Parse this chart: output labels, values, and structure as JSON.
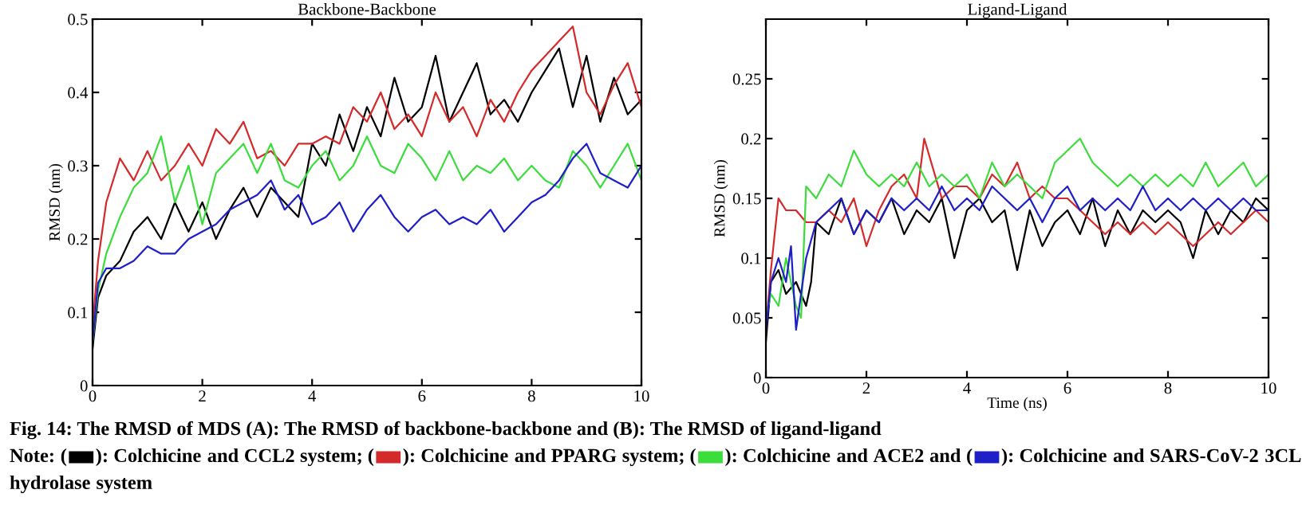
{
  "chart_data": [
    {
      "type": "line",
      "title": "Backbone-Backbone",
      "ylabel": "RMSD (nm)",
      "xlim": [
        0,
        10
      ],
      "ylim": [
        0,
        0.5
      ],
      "xticks": [
        0,
        2,
        4,
        6,
        8,
        10
      ],
      "yticks": [
        0,
        0.1,
        0.2,
        0.3,
        0.4,
        0.5
      ],
      "grid": false,
      "marker": "none",
      "line_style": "solid",
      "annotations": [
        "Fig. 14: The RMSD of MDS (A): The RMSD of backbone-backbone and (B): The RMSD of ligand-ligand",
        "Note: (",
        "): Colchicine and CCL2 system; (",
        "): Colchicine and PPARG system; (",
        "): Colchicine and ACE2 and (",
        "): Colchicine and SARS-CoV-2 3CL hydrolase system"
      ],
      "x": [
        0,
        0.1,
        0.25,
        0.5,
        0.75,
        1,
        1.25,
        1.5,
        1.75,
        2,
        2.25,
        2.5,
        2.75,
        3,
        3.25,
        3.5,
        3.75,
        4,
        4.25,
        4.5,
        4.75,
        5,
        5.25,
        5.5,
        5.75,
        6,
        6.25,
        6.5,
        6.75,
        7,
        7.25,
        7.5,
        7.75,
        8,
        8.25,
        8.5,
        8.75,
        9,
        9.25,
        9.5,
        9.75,
        10
      ],
      "series": [
        {
          "color": "#000000",
          "values": [
            0.05,
            0.12,
            0.15,
            0.17,
            0.21,
            0.23,
            0.2,
            0.25,
            0.21,
            0.25,
            0.2,
            0.24,
            0.27,
            0.23,
            0.27,
            0.25,
            0.23,
            0.33,
            0.3,
            0.37,
            0.32,
            0.38,
            0.34,
            0.42,
            0.36,
            0.38,
            0.45,
            0.36,
            0.4,
            0.44,
            0.37,
            0.39,
            0.36,
            0.4,
            0.43,
            0.46,
            0.38,
            0.45,
            0.36,
            0.42,
            0.37,
            0.39
          ]
        },
        {
          "color": "#d42a2a",
          "values": [
            0.08,
            0.17,
            0.25,
            0.31,
            0.28,
            0.32,
            0.28,
            0.3,
            0.33,
            0.3,
            0.35,
            0.33,
            0.36,
            0.31,
            0.32,
            0.3,
            0.33,
            0.33,
            0.34,
            0.33,
            0.38,
            0.36,
            0.4,
            0.35,
            0.37,
            0.34,
            0.4,
            0.36,
            0.38,
            0.34,
            0.39,
            0.36,
            0.4,
            0.43,
            0.45,
            0.47,
            0.49,
            0.4,
            0.37,
            0.41,
            0.44,
            0.38
          ]
        },
        {
          "color": "#3ddc3d",
          "values": [
            0.06,
            0.13,
            0.18,
            0.23,
            0.27,
            0.29,
            0.34,
            0.25,
            0.3,
            0.22,
            0.29,
            0.31,
            0.33,
            0.29,
            0.33,
            0.28,
            0.27,
            0.3,
            0.32,
            0.28,
            0.3,
            0.34,
            0.3,
            0.29,
            0.33,
            0.31,
            0.28,
            0.32,
            0.28,
            0.3,
            0.29,
            0.31,
            0.28,
            0.3,
            0.28,
            0.27,
            0.32,
            0.3,
            0.27,
            0.3,
            0.33,
            0.28
          ]
        },
        {
          "color": "#1f1fc8",
          "values": [
            0.06,
            0.14,
            0.16,
            0.16,
            0.17,
            0.19,
            0.18,
            0.18,
            0.2,
            0.21,
            0.22,
            0.24,
            0.25,
            0.26,
            0.28,
            0.24,
            0.26,
            0.22,
            0.23,
            0.25,
            0.21,
            0.24,
            0.26,
            0.23,
            0.21,
            0.23,
            0.24,
            0.22,
            0.23,
            0.22,
            0.24,
            0.21,
            0.23,
            0.25,
            0.26,
            0.28,
            0.31,
            0.33,
            0.29,
            0.28,
            0.27,
            0.3
          ]
        }
      ]
    },
    {
      "type": "line",
      "title": "Ligand-Ligand",
      "xlabel": "Time (ns)",
      "ylabel": "RMSD (nm)",
      "xlim": [
        0,
        10
      ],
      "ylim": [
        0,
        0.3
      ],
      "xticks": [
        0,
        2,
        4,
        6,
        8,
        10
      ],
      "yticks": [
        0,
        0.05,
        0.1,
        0.15,
        0.2,
        0.25
      ],
      "grid": false,
      "marker": "none",
      "line_style": "solid",
      "series": [
        {
          "color": "#000000",
          "x": [
            0,
            0.1,
            0.25,
            0.4,
            0.6,
            0.8,
            0.9,
            1,
            1.25,
            1.5,
            1.75,
            2,
            2.25,
            2.5,
            2.75,
            3,
            3.25,
            3.5,
            3.75,
            4,
            4.25,
            4.5,
            4.75,
            5,
            5.25,
            5.5,
            5.75,
            6,
            6.25,
            6.5,
            6.75,
            7,
            7.25,
            7.5,
            7.75,
            8,
            8.25,
            8.5,
            8.75,
            9,
            9.25,
            9.5,
            9.75,
            10
          ],
          "values": [
            0.03,
            0.08,
            0.09,
            0.07,
            0.08,
            0.06,
            0.08,
            0.13,
            0.12,
            0.15,
            0.12,
            0.14,
            0.13,
            0.15,
            0.12,
            0.14,
            0.13,
            0.15,
            0.1,
            0.14,
            0.15,
            0.13,
            0.14,
            0.09,
            0.14,
            0.11,
            0.13,
            0.14,
            0.12,
            0.15,
            0.11,
            0.14,
            0.12,
            0.14,
            0.13,
            0.14,
            0.13,
            0.1,
            0.14,
            0.12,
            0.14,
            0.13,
            0.15,
            0.14
          ]
        },
        {
          "color": "#d42a2a",
          "x": [
            0,
            0.1,
            0.25,
            0.4,
            0.6,
            0.8,
            1,
            1.25,
            1.5,
            1.75,
            2,
            2.25,
            2.5,
            2.75,
            3,
            3.15,
            3.5,
            3.75,
            4,
            4.25,
            4.5,
            4.75,
            5,
            5.25,
            5.5,
            5.75,
            6,
            6.25,
            6.5,
            6.75,
            7,
            7.25,
            7.5,
            7.75,
            8,
            8.25,
            8.5,
            8.75,
            9,
            9.25,
            9.5,
            9.75,
            10
          ],
          "values": [
            0.04,
            0.09,
            0.15,
            0.14,
            0.14,
            0.13,
            0.13,
            0.14,
            0.13,
            0.15,
            0.11,
            0.14,
            0.16,
            0.17,
            0.15,
            0.2,
            0.15,
            0.16,
            0.16,
            0.15,
            0.17,
            0.16,
            0.18,
            0.15,
            0.16,
            0.15,
            0.15,
            0.14,
            0.13,
            0.12,
            0.13,
            0.12,
            0.13,
            0.12,
            0.13,
            0.12,
            0.11,
            0.12,
            0.13,
            0.12,
            0.13,
            0.14,
            0.13
          ]
        },
        {
          "color": "#3ddc3d",
          "x": [
            0,
            0.1,
            0.25,
            0.4,
            0.6,
            0.7,
            0.8,
            1,
            1.25,
            1.5,
            1.75,
            2,
            2.25,
            2.5,
            2.75,
            3,
            3.25,
            3.5,
            3.75,
            4,
            4.25,
            4.5,
            4.75,
            5,
            5.25,
            5.5,
            5.75,
            6,
            6.25,
            6.5,
            6.75,
            7,
            7.25,
            7.5,
            7.75,
            8,
            8.25,
            8.5,
            8.75,
            9,
            9.25,
            9.5,
            9.75,
            10
          ],
          "values": [
            0.05,
            0.07,
            0.06,
            0.1,
            0.06,
            0.05,
            0.16,
            0.15,
            0.17,
            0.16,
            0.19,
            0.17,
            0.16,
            0.17,
            0.16,
            0.18,
            0.16,
            0.17,
            0.16,
            0.17,
            0.15,
            0.18,
            0.16,
            0.17,
            0.16,
            0.15,
            0.18,
            0.19,
            0.2,
            0.18,
            0.17,
            0.16,
            0.17,
            0.16,
            0.17,
            0.16,
            0.17,
            0.16,
            0.18,
            0.16,
            0.17,
            0.18,
            0.16,
            0.17
          ]
        },
        {
          "color": "#1f1fc8",
          "x": [
            0,
            0.1,
            0.25,
            0.4,
            0.5,
            0.6,
            0.8,
            1,
            1.25,
            1.5,
            1.75,
            2,
            2.25,
            2.5,
            2.75,
            3,
            3.25,
            3.5,
            3.75,
            4,
            4.25,
            4.5,
            4.75,
            5,
            5.25,
            5.5,
            5.75,
            6,
            6.25,
            6.5,
            6.75,
            7,
            7.25,
            7.5,
            7.75,
            8,
            8.25,
            8.5,
            8.75,
            9,
            9.25,
            9.5,
            9.75,
            10
          ],
          "values": [
            0.04,
            0.08,
            0.1,
            0.08,
            0.11,
            0.04,
            0.1,
            0.13,
            0.14,
            0.15,
            0.12,
            0.14,
            0.13,
            0.15,
            0.14,
            0.15,
            0.14,
            0.16,
            0.14,
            0.15,
            0.14,
            0.16,
            0.15,
            0.14,
            0.15,
            0.13,
            0.15,
            0.16,
            0.14,
            0.15,
            0.14,
            0.15,
            0.14,
            0.16,
            0.14,
            0.15,
            0.14,
            0.15,
            0.14,
            0.15,
            0.14,
            0.15,
            0.14,
            0.14
          ]
        }
      ]
    }
  ]
}
